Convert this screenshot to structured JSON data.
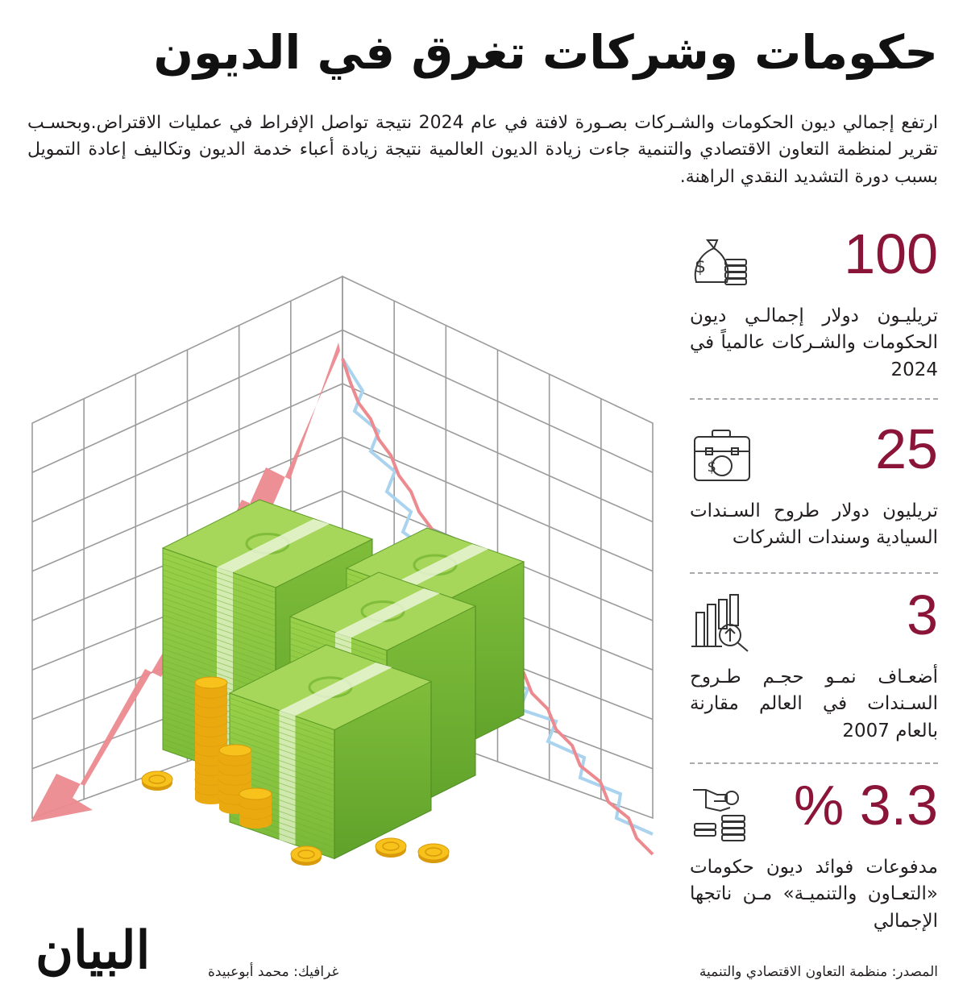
{
  "title": "حكومات وشركات تغرق في الديون",
  "intro": "ارتفع إجمالي ديون الحكومات والشـركات بصـورة لافتة في عام 2024 نتيجة تواصل الإفراط في عمليات الاقتراض.وبحسـب تقرير لمنظمة التعاون الاقتصادي والتنمية جاءت زيادة الديون العالمية نتيجة زيادة أعباء خدمة الديون وتكاليف إعادة التمويل بسبب دورة التشديد النقدي الراهنة.",
  "stats": [
    {
      "value": "100",
      "description": "تريليـون دولار إجمالـي ديون الحكومات والشـركات عالمياً في 2024",
      "icon": "money-bag-icon"
    },
    {
      "value": "25",
      "description": "تريليون دولار طروح السـندات السيادية وسندات الشركات",
      "icon": "briefcase-dollar-icon"
    },
    {
      "value": "3",
      "description": "أضعـاف نمـو حجـم طـروح السـندات في العالم مقارنة بالعام 2007",
      "icon": "bar-chart-magnifier-icon"
    },
    {
      "value": "% 3.3",
      "description": "مدفوعات فوائد ديون حكومات «التعـاون والتنميـة» مـن ناتجها الإجمالي",
      "icon": "hand-coins-icon"
    }
  ],
  "footer": {
    "source": "المصدر: منظمة التعاون الاقتصادي والتنمية",
    "credit": "غرافيك: محمد أبوعبيدة",
    "logo": "البيان"
  },
  "colors": {
    "accent": "#8a1538",
    "arrow_red": "#ec8a8f",
    "line_blue": "#a9d3ee",
    "money_green": "#8cc63f",
    "coin_gold": "#f7c21b"
  }
}
